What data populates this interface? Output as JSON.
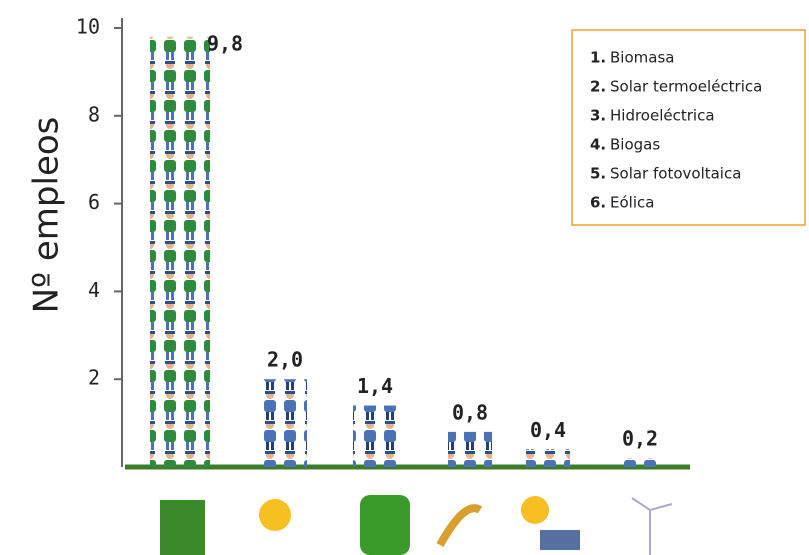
{
  "chart_data": {
    "type": "bar",
    "y_label": "Nº empleos",
    "categories": [
      "Biomasa",
      "Solar termoeléctrica",
      "Hidroeléctrica",
      "Biogas",
      "Solar fotovoltaica",
      "Eólica"
    ],
    "category_numbers": [
      "1.",
      "2.",
      "3.",
      "4.",
      "5.",
      "6."
    ],
    "values": [
      9.8,
      2.0,
      1.4,
      0.8,
      0.4,
      0.2
    ],
    "value_labels": [
      "9,8",
      "2,0",
      "1,4",
      "0,8",
      "0,4",
      "0,2"
    ],
    "colors": [
      "url(#people-green)",
      "url(#people-blue)",
      "url(#people-blue)",
      "url(#people-blue)",
      "url(#people-blue)",
      "url(#people-blue)"
    ],
    "ylim": [
      0,
      10
    ],
    "yticks": [
      2,
      4,
      6,
      8,
      10
    ]
  }
}
